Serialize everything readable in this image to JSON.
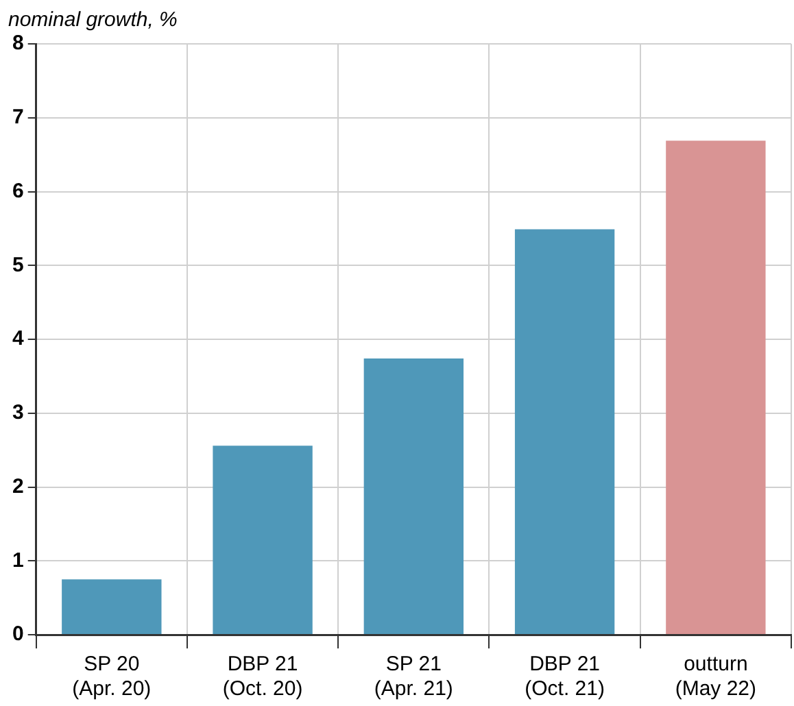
{
  "chart_data": {
    "type": "bar",
    "subtitle": "nominal growth, %",
    "categories": [
      "SP 20\n(Apr. 20)",
      "DBP 21\n(Oct. 20)",
      "SP 21\n(Apr. 21)",
      "DBP 21\n(Oct. 21)",
      "outturn\n(May 22)"
    ],
    "values": [
      0.75,
      2.56,
      3.74,
      5.49,
      6.69
    ],
    "colors": [
      "#4f98b9",
      "#4f98b9",
      "#4f98b9",
      "#4f98b9",
      "#d99494"
    ],
    "ylim": [
      0,
      8
    ],
    "yticks": [
      0,
      1,
      2,
      3,
      4,
      5,
      6,
      7,
      8
    ],
    "grid": true,
    "legend": false
  }
}
